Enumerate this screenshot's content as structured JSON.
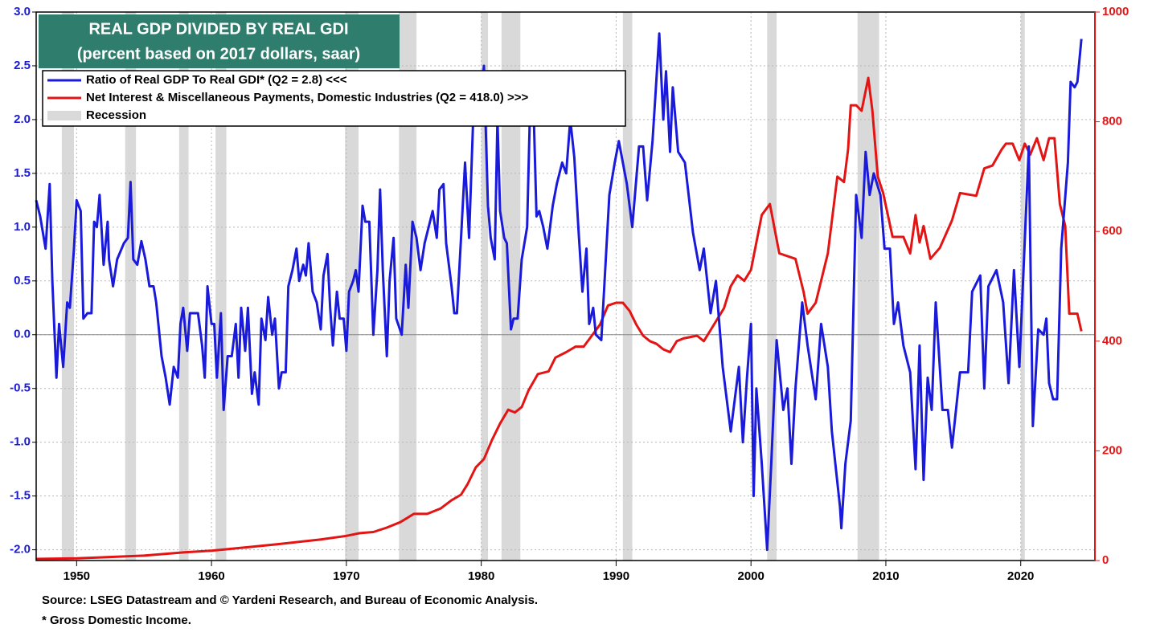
{
  "chart_data": {
    "type": "line",
    "title": "REAL GDP DIVIDED BY REAL GDI",
    "subtitle": "(percent based on 2017 dollars, saar)",
    "notes": [
      "Source: LSEG Datastream and © Yardeni Research, and Bureau of Economic Analysis.",
      "* Gross Domestic Income."
    ],
    "xlim": [
      1947,
      2025.5
    ],
    "xticks": [
      1950,
      1960,
      1970,
      1980,
      1990,
      2000,
      2010,
      2020
    ],
    "ylim": [
      -2.1,
      3.0
    ],
    "yticks": [
      {
        "value": -2,
        "label": "-2.0"
      },
      -1.5,
      {
        "value": -1,
        "label": "-1.0"
      },
      -0.5,
      {
        "value": 0,
        "label": "0.0"
      },
      0.5,
      {
        "value": 1,
        "label": "1.0"
      },
      1.5,
      {
        "value": 2,
        "label": "2.0"
      },
      2.5,
      {
        "value": 3,
        "label": "3.0"
      }
    ],
    "y2lim": [
      0,
      1000
    ],
    "y2ticks": [
      0,
      200,
      400,
      600,
      800,
      1000
    ],
    "grid": true,
    "legend": "upper left",
    "recessions": {
      "name": "Recession",
      "color": "#d9d9d9",
      "periods": [
        [
          1948.9,
          1949.8
        ],
        [
          1953.6,
          1954.4
        ],
        [
          1957.6,
          1958.3
        ],
        [
          1960.3,
          1961.1
        ],
        [
          1969.9,
          1970.9
        ],
        [
          1973.9,
          1975.2
        ],
        [
          1980.0,
          1980.5
        ],
        [
          1981.5,
          1982.9
        ],
        [
          1990.5,
          1991.2
        ],
        [
          2001.2,
          2001.9
        ],
        [
          2007.9,
          2009.5
        ],
        [
          2020.0,
          2020.3
        ]
      ]
    },
    "series": [
      {
        "name": "Ratio of Real GDP To Real GDI* (Q2 = 2.8) <<<",
        "color": "#1a1adb",
        "axis": "y",
        "x": [
          1947.0,
          1947.3,
          1947.7,
          1948.0,
          1948.2,
          1948.5,
          1948.7,
          1949.0,
          1949.3,
          1949.5,
          1949.8,
          1950.0,
          1950.3,
          1950.5,
          1950.8,
          1951.1,
          1951.3,
          1951.5,
          1951.7,
          1952.0,
          1952.3,
          1952.4,
          1952.7,
          1953.0,
          1953.5,
          1953.8,
          1954.0,
          1954.2,
          1954.5,
          1954.8,
          1955.1,
          1955.4,
          1955.7,
          1955.9,
          1956.3,
          1956.6,
          1956.9,
          1957.2,
          1957.5,
          1957.7,
          1957.9,
          1958.2,
          1958.4,
          1958.8,
          1959.0,
          1959.3,
          1959.5,
          1959.7,
          1960.0,
          1960.2,
          1960.4,
          1960.7,
          1960.9,
          1961.2,
          1961.5,
          1961.8,
          1962.0,
          1962.2,
          1962.5,
          1962.7,
          1963.0,
          1963.2,
          1963.5,
          1963.7,
          1964.0,
          1964.2,
          1964.5,
          1964.7,
          1965.0,
          1965.2,
          1965.5,
          1965.7,
          1966.0,
          1966.3,
          1966.5,
          1966.8,
          1967.0,
          1967.2,
          1967.5,
          1967.8,
          1968.1,
          1968.3,
          1968.6,
          1968.8,
          1969.0,
          1969.3,
          1969.5,
          1969.8,
          1970.0,
          1970.2,
          1970.5,
          1970.7,
          1970.9,
          1971.2,
          1971.4,
          1971.7,
          1972.0,
          1972.3,
          1972.5,
          1972.7,
          1973.0,
          1973.2,
          1973.5,
          1973.7,
          1974.1,
          1974.4,
          1974.6,
          1974.9,
          1975.2,
          1975.5,
          1975.8,
          1976.1,
          1976.4,
          1976.7,
          1976.9,
          1977.2,
          1977.4,
          1977.8,
          1978.0,
          1978.2,
          1978.5,
          1978.8,
          1979.1,
          1979.4,
          1979.7,
          1979.9,
          1980.2,
          1980.5,
          1980.7,
          1981.0,
          1981.2,
          1981.4,
          1981.7,
          1981.9,
          1982.2,
          1982.4,
          1982.7,
          1983.0,
          1983.4,
          1983.6,
          1983.9,
          1984.1,
          1984.3,
          1984.6,
          1984.9,
          1985.3,
          1985.6,
          1986.0,
          1986.3,
          1986.6,
          1986.9,
          1987.2,
          1987.5,
          1987.8,
          1988.0,
          1988.3,
          1988.5,
          1988.9,
          1989.5,
          1989.9,
          1990.2,
          1990.8,
          1991.2,
          1991.7,
          1992.0,
          1992.3,
          1992.7,
          1992.9,
          1993.2,
          1993.5,
          1993.7,
          1994.0,
          1994.2,
          1994.6,
          1995.1,
          1995.7,
          1996.2,
          1996.5,
          1997.0,
          1997.4,
          1997.9,
          1998.5,
          1999.1,
          1999.4,
          1999.7,
          2000.0,
          2000.2,
          2000.4,
          2000.8,
          2001.2,
          2001.5,
          2001.9,
          2002.4,
          2002.7,
          2003.0,
          2003.3,
          2003.8,
          2004.2,
          2004.8,
          2005.2,
          2005.7,
          2006.0,
          2006.6,
          2006.7,
          2007.0,
          2007.4,
          2007.8,
          2008.2,
          2008.5,
          2008.8,
          2009.1,
          2009.6,
          2009.9,
          2010.3,
          2010.6,
          2010.9,
          2011.3,
          2011.8,
          2012.2,
          2012.5,
          2012.8,
          2013.1,
          2013.4,
          2013.7,
          2014.2,
          2014.6,
          2014.9,
          2015.5,
          2016.1,
          2016.4,
          2017.0,
          2017.3,
          2017.6,
          2018.2,
          2018.7,
          2019.1,
          2019.5,
          2019.9,
          2020.6,
          2020.9,
          2021.3,
          2021.7,
          2021.9,
          2022.1,
          2022.4,
          2022.7,
          2023.0,
          2023.5,
          2023.7,
          2024.0,
          2024.2,
          2024.5
        ],
        "values": [
          1.25,
          1.1,
          0.8,
          1.4,
          0.5,
          -0.4,
          0.1,
          -0.3,
          0.3,
          0.25,
          0.8,
          1.25,
          1.15,
          0.15,
          0.2,
          0.2,
          1.05,
          1.0,
          1.3,
          0.65,
          1.05,
          0.7,
          0.45,
          0.7,
          0.85,
          0.9,
          1.42,
          0.7,
          0.65,
          0.87,
          0.7,
          0.45,
          0.45,
          0.3,
          -0.2,
          -0.4,
          -0.65,
          -0.3,
          -0.4,
          0.1,
          0.25,
          -0.15,
          0.2,
          0.2,
          0.2,
          -0.1,
          -0.4,
          0.45,
          0.1,
          0.1,
          -0.4,
          0.2,
          -0.7,
          -0.2,
          -0.2,
          0.1,
          -0.4,
          0.25,
          -0.15,
          0.25,
          -0.55,
          -0.35,
          -0.65,
          0.15,
          -0.05,
          0.35,
          0.0,
          0.15,
          -0.5,
          -0.35,
          -0.35,
          0.45,
          0.6,
          0.8,
          0.5,
          0.65,
          0.55,
          0.85,
          0.4,
          0.3,
          0.05,
          0.55,
          0.75,
          0.25,
          -0.1,
          0.4,
          0.15,
          0.15,
          -0.15,
          0.4,
          0.5,
          0.6,
          0.4,
          1.2,
          1.05,
          1.05,
          0.0,
          0.6,
          1.35,
          0.6,
          -0.2,
          0.5,
          0.9,
          0.15,
          0.0,
          0.65,
          0.25,
          1.05,
          0.9,
          0.6,
          0.85,
          1.0,
          1.15,
          0.9,
          1.35,
          1.4,
          0.85,
          0.45,
          0.2,
          0.2,
          0.9,
          1.6,
          0.9,
          2.0,
          2.0,
          2.1,
          2.5,
          1.2,
          0.9,
          0.7,
          2.0,
          1.15,
          0.9,
          0.85,
          0.05,
          0.15,
          0.15,
          0.7,
          1.0,
          2.0,
          2.0,
          1.1,
          1.15,
          1.0,
          0.8,
          1.2,
          1.4,
          1.6,
          1.5,
          2.0,
          1.65,
          1.0,
          0.4,
          0.8,
          0.1,
          0.25,
          0.0,
          -0.05,
          1.3,
          1.6,
          1.8,
          1.4,
          1.0,
          1.75,
          1.75,
          1.25,
          1.8,
          2.2,
          2.8,
          2.0,
          2.45,
          1.7,
          2.3,
          1.7,
          1.6,
          0.95,
          0.6,
          0.8,
          0.2,
          0.5,
          -0.3,
          -0.9,
          -0.3,
          -1.0,
          -0.4,
          0.1,
          -1.5,
          -0.5,
          -1.2,
          -2.0,
          -1.2,
          -0.05,
          -0.7,
          -0.5,
          -1.2,
          -0.5,
          0.3,
          -0.1,
          -0.6,
          0.1,
          -0.3,
          -0.9,
          -1.6,
          -1.8,
          -1.2,
          -0.8,
          1.3,
          0.9,
          1.7,
          1.3,
          1.5,
          1.3,
          0.8,
          0.8,
          0.1,
          0.3,
          -0.1,
          -0.35,
          -1.25,
          -0.1,
          -1.35,
          -0.4,
          -0.7,
          0.3,
          -0.7,
          -0.7,
          -1.05,
          -0.35,
          -0.35,
          0.4,
          0.55,
          -0.5,
          0.45,
          0.6,
          0.3,
          -0.45,
          0.6,
          -0.3,
          1.75,
          -0.85,
          0.05,
          0.0,
          0.15,
          -0.45,
          -0.6,
          -0.6,
          0.8,
          1.6,
          2.35,
          2.3,
          2.35,
          2.75
        ]
      },
      {
        "name": "Net Interest & Miscellaneous Payments, Domestic Industries (Q2 = 418.0) >>>",
        "color": "#e31414",
        "axis": "y2",
        "x": [
          1947.0,
          1950.0,
          1955.0,
          1958.0,
          1960.0,
          1963.0,
          1965.0,
          1968.0,
          1970.0,
          1971.0,
          1972.0,
          1973.0,
          1974.0,
          1975.0,
          1976.0,
          1977.0,
          1977.8,
          1978.5,
          1979.0,
          1979.6,
          1980.2,
          1980.8,
          1981.4,
          1982.0,
          1982.5,
          1983.0,
          1983.5,
          1984.2,
          1985.0,
          1985.5,
          1986.3,
          1987.0,
          1987.6,
          1988.2,
          1988.8,
          1989.4,
          1990.0,
          1990.5,
          1991.0,
          1991.5,
          1992.0,
          1992.5,
          1993.0,
          1993.5,
          1994.0,
          1994.5,
          1995.0,
          1996.0,
          1996.5,
          1997.0,
          1997.5,
          1998.0,
          1998.5,
          1999.0,
          1999.5,
          2000.0,
          2000.8,
          2001.4,
          2002.1,
          2003.3,
          2003.9,
          2004.2,
          2004.8,
          2005.7,
          2006.4,
          2006.9,
          2007.2,
          2007.4,
          2007.8,
          2008.2,
          2008.7,
          2009.0,
          2009.4,
          2009.8,
          2010.5,
          2011.3,
          2011.8,
          2012.2,
          2012.5,
          2012.8,
          2013.3,
          2014.0,
          2014.9,
          2015.5,
          2016.7,
          2017.3,
          2017.9,
          2018.6,
          2018.9,
          2019.4,
          2019.9,
          2020.3,
          2020.7,
          2021.2,
          2021.7,
          2022.1,
          2022.5,
          2022.9,
          2023.3,
          2023.6,
          2024.2,
          2024.5
        ],
        "values": [
          3,
          4,
          9,
          15,
          18,
          25,
          30,
          38,
          45,
          50,
          52,
          60,
          70,
          85,
          85,
          95,
          110,
          120,
          140,
          170,
          185,
          220,
          250,
          275,
          270,
          280,
          310,
          340,
          345,
          370,
          380,
          390,
          390,
          410,
          430,
          465,
          470,
          470,
          455,
          430,
          410,
          400,
          395,
          385,
          380,
          400,
          405,
          410,
          400,
          420,
          440,
          460,
          500,
          520,
          510,
          530,
          630,
          650,
          560,
          550,
          490,
          450,
          470,
          560,
          700,
          690,
          750,
          830,
          830,
          820,
          880,
          820,
          700,
          670,
          590,
          590,
          560,
          630,
          580,
          610,
          550,
          570,
          620,
          670,
          665,
          715,
          720,
          750,
          760,
          760,
          730,
          760,
          740,
          770,
          730,
          770,
          770,
          650,
          610,
          450,
          450,
          418
        ]
      }
    ]
  }
}
